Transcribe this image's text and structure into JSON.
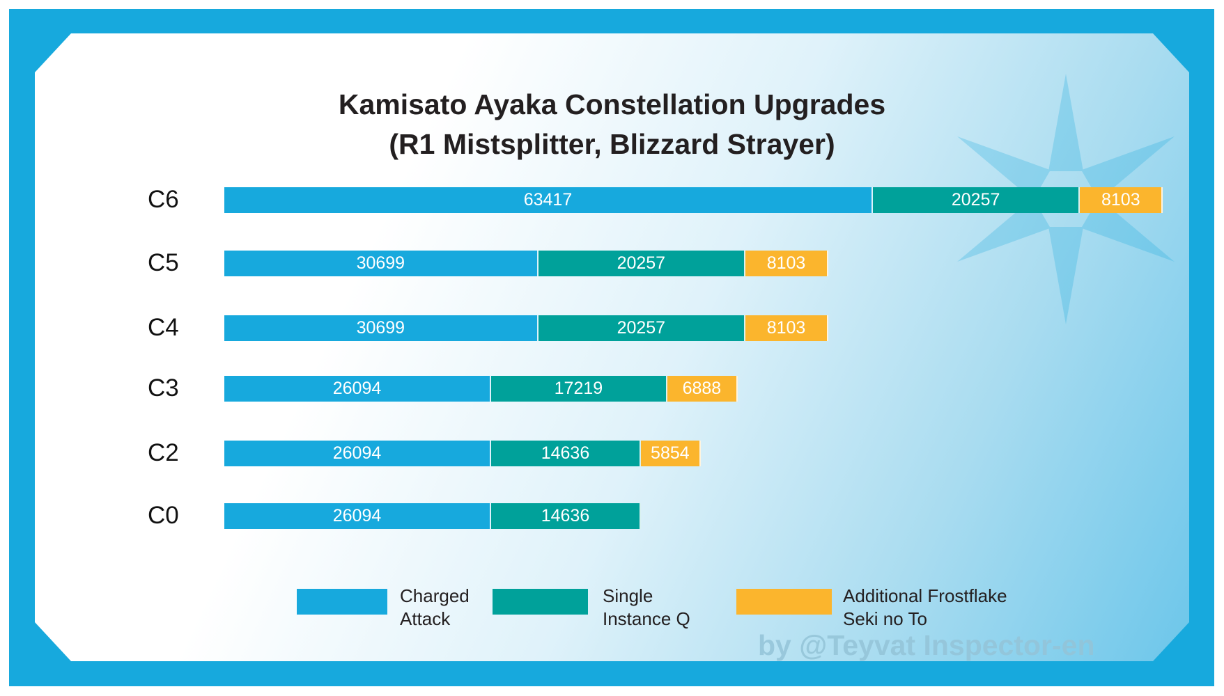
{
  "chart_data": {
    "type": "bar",
    "orientation": "horizontal",
    "stacked": true,
    "title": "Kamisato Ayaka Constellation Upgrades",
    "subtitle": "(R1 Mistsplitter, Blizzard Strayer)",
    "categories": [
      "C6",
      "C5",
      "C4",
      "C3",
      "C2",
      "C0"
    ],
    "series": [
      {
        "name": "Charged Attack",
        "color": "#17a9dd",
        "values": [
          63417,
          30699,
          30699,
          26094,
          26094,
          26094
        ]
      },
      {
        "name": "Single Instance Q",
        "color": "#00a19a",
        "values": [
          20257,
          20257,
          20257,
          17219,
          14636,
          14636
        ]
      },
      {
        "name": "Additional Frostflake Seki no To",
        "color": "#fbb52d",
        "values": [
          8103,
          8103,
          8103,
          6888,
          5854,
          null
        ]
      }
    ],
    "legend": [
      {
        "label": "Charged\nAttack",
        "color": "#17a9dd"
      },
      {
        "label": "Single\nInstance Q",
        "color": "#00a19a"
      },
      {
        "label": "Additional Frostflake\nSeki no To",
        "color": "#fbb52d"
      }
    ],
    "legend_position": "bottom",
    "data_labels": true,
    "grid": false,
    "axis_visible": false
  },
  "watermark": "by @Teyvat Inspector-en",
  "colors": {
    "frame": "#17a9dd"
  }
}
